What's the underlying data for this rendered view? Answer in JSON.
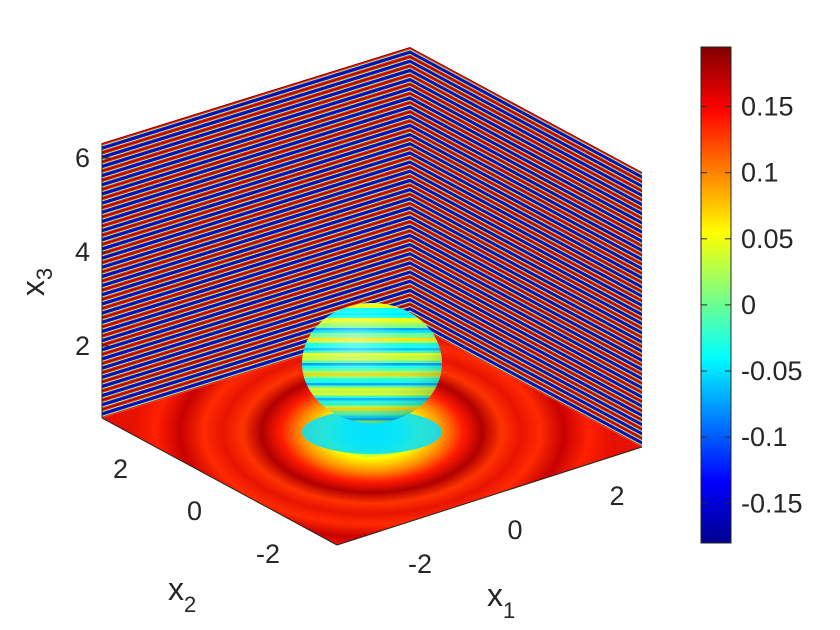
{
  "chart_data": {
    "type": "surface-3d",
    "colormap": "jet",
    "axes": {
      "x1": {
        "label": "x",
        "sub": "1",
        "ticks": [
          -2,
          0,
          2
        ],
        "tick_labels": [
          "-2",
          "0",
          "2"
        ]
      },
      "x2": {
        "label": "x",
        "sub": "2",
        "ticks": [
          -2,
          0,
          2
        ],
        "tick_labels": [
          "-2",
          "0",
          "2"
        ]
      },
      "x3": {
        "label": "x",
        "sub": "3",
        "ticks": [
          2,
          4,
          6
        ],
        "tick_labels": [
          "2",
          "4",
          "6"
        ]
      }
    },
    "colorbar": {
      "range": [
        -0.18,
        0.195
      ],
      "ticks": [
        -0.15,
        -0.1,
        -0.05,
        0,
        0.05,
        0.1,
        0.15
      ],
      "tick_labels": [
        "-0.15",
        "-0.1",
        "-0.05",
        "0",
        "0.05",
        "0.1",
        "0.15"
      ]
    },
    "slices": [
      "back wall x1",
      "back wall x2",
      "floor x3"
    ],
    "objects": [
      "sphere"
    ]
  }
}
